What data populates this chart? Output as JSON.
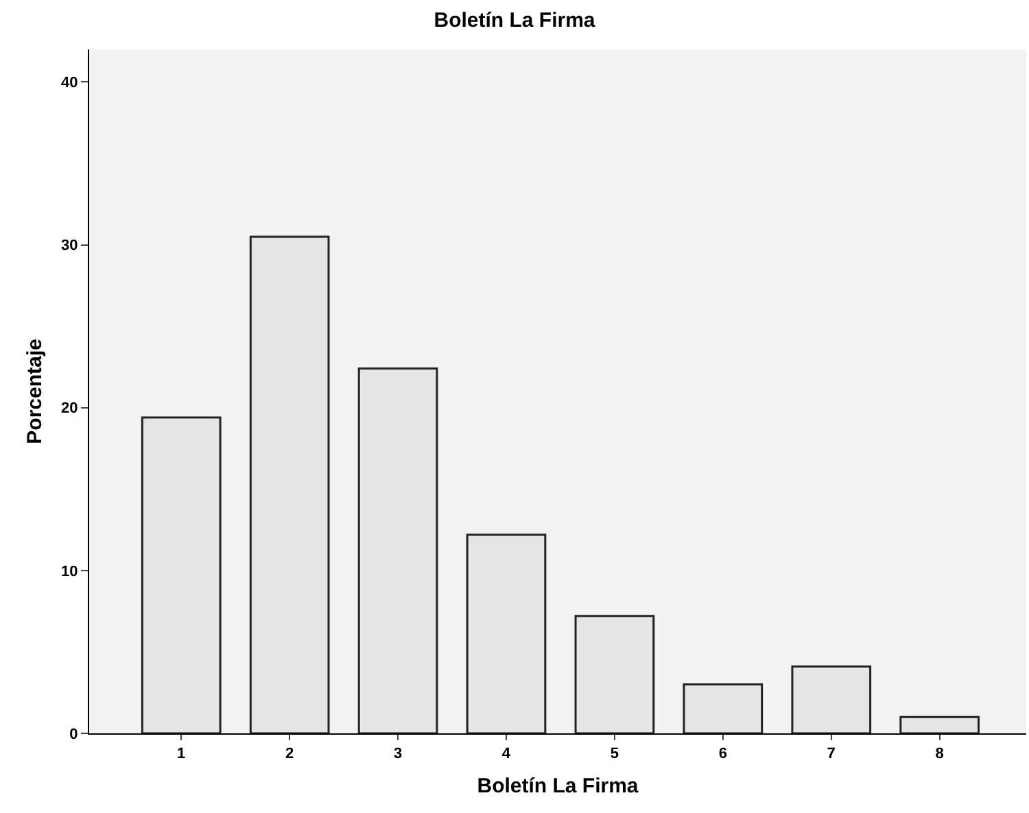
{
  "chart_data": {
    "type": "bar",
    "title": "Boletín La Firma",
    "xlabel": "Boletín La Firma",
    "ylabel": "Porcentaje",
    "categories": [
      "1",
      "2",
      "3",
      "4",
      "5",
      "6",
      "7",
      "8"
    ],
    "values": [
      19.4,
      30.5,
      22.4,
      12.2,
      7.2,
      3.0,
      4.1,
      1.0
    ],
    "color": "#e6e6e6",
    "ylim": [
      0,
      42
    ],
    "yticks": [
      0,
      10,
      20,
      30,
      40
    ],
    "grid": false,
    "legend": false
  }
}
